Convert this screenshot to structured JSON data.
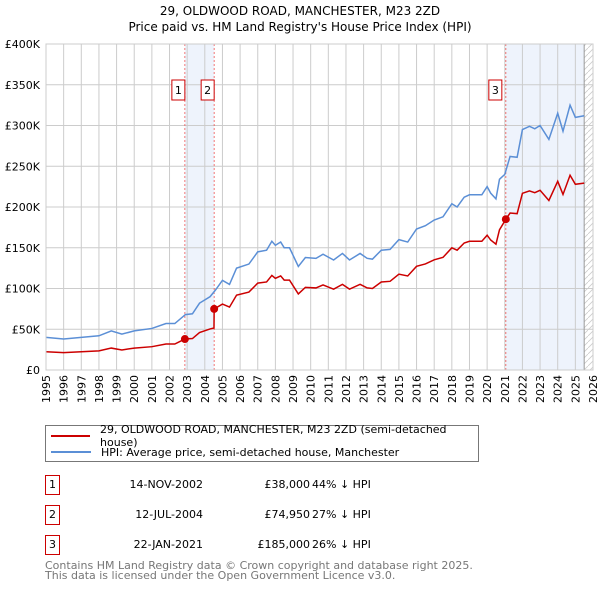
{
  "chart_data": {
    "type": "line",
    "title": "29, OLDWOOD ROAD, MANCHESTER, M23 2ZD",
    "subtitle": "Price paid vs. HM Land Registry's House Price Index (HPI)",
    "xlim": [
      1995,
      2026
    ],
    "ylim": [
      0,
      400000
    ],
    "x_ticks": [
      "1995",
      "1996",
      "1997",
      "1998",
      "1999",
      "2000",
      "2001",
      "2002",
      "2003",
      "2004",
      "2005",
      "2006",
      "2007",
      "2008",
      "2009",
      "2010",
      "2011",
      "2012",
      "2013",
      "2014",
      "2015",
      "2016",
      "2017",
      "2018",
      "2019",
      "2020",
      "2021",
      "2022",
      "2023",
      "2024",
      "2025",
      "2026"
    ],
    "y_ticks": [
      {
        "v": 0,
        "label": "£0"
      },
      {
        "v": 50000,
        "label": "£50K"
      },
      {
        "v": 100000,
        "label": "£100K"
      },
      {
        "v": 150000,
        "label": "£150K"
      },
      {
        "v": 200000,
        "label": "£200K"
      },
      {
        "v": 250000,
        "label": "£250K"
      },
      {
        "v": 300000,
        "label": "£300K"
      },
      {
        "v": 350000,
        "label": "£350K"
      },
      {
        "v": 400000,
        "label": "£400K"
      }
    ],
    "grid": true,
    "series": [
      {
        "name": "29, OLDWOOD ROAD, MANCHESTER, M23 2ZD (semi-detached house)",
        "color": "#cc0000",
        "x": [
          1995,
          1996,
          1997,
          1998,
          1998.7,
          1999.3,
          2000,
          2001,
          2001.8,
          2002.3,
          2002.87,
          2003.3,
          2003.7,
          2004.3,
          2004.52,
          2004.53,
          2005,
          2005.4,
          2005.8,
          2006.5,
          2007,
          2007.5,
          2007.8,
          2008,
          2008.3,
          2008.5,
          2008.8,
          2009.3,
          2009.7,
          2010.3,
          2010.7,
          2011.3,
          2011.8,
          2012.2,
          2012.8,
          2013.2,
          2013.5,
          2014,
          2014.5,
          2015,
          2015.5,
          2016,
          2016.5,
          2017,
          2017.5,
          2018,
          2018.3,
          2018.7,
          2019,
          2019.7,
          2020,
          2020.2,
          2020.5,
          2020.7,
          2021.06,
          2021.3,
          2021.7,
          2022,
          2022.4,
          2022.7,
          2023,
          2023.5,
          2024,
          2024.3,
          2024.7,
          2025,
          2025.5
        ],
        "values": [
          22400,
          21300,
          22400,
          23500,
          26900,
          24600,
          26900,
          28600,
          31900,
          31900,
          38000,
          38600,
          45900,
          50400,
          51500,
          74950,
          80900,
          77200,
          91900,
          95600,
          106600,
          108000,
          116100,
          112500,
          115400,
          110300,
          110300,
          93300,
          101400,
          100700,
          104400,
          99200,
          105100,
          99200,
          105100,
          100700,
          100000,
          108000,
          108800,
          117600,
          115400,
          127200,
          130100,
          135200,
          138200,
          149900,
          147000,
          155800,
          158000,
          158000,
          165400,
          159500,
          154400,
          172000,
          185000,
          192600,
          191800,
          216800,
          219800,
          217600,
          220500,
          208000,
          231500,
          215400,
          238900,
          227900,
          229300
        ]
      },
      {
        "name": "HPI: Average price, semi-detached house, Manchester",
        "color": "#5b8fd6",
        "x": [
          1995,
          1996,
          1997,
          1998,
          1998.7,
          1999.3,
          2000,
          2001,
          2001.8,
          2002.3,
          2002.9,
          2003.3,
          2003.7,
          2004.3,
          2004.6,
          2005,
          2005.4,
          2005.8,
          2006.5,
          2007,
          2007.5,
          2007.8,
          2008,
          2008.3,
          2008.5,
          2008.8,
          2009.3,
          2009.7,
          2010.3,
          2010.7,
          2011.3,
          2011.8,
          2012.2,
          2012.8,
          2013.2,
          2013.5,
          2014,
          2014.5,
          2015,
          2015.5,
          2016,
          2016.5,
          2017,
          2017.5,
          2018,
          2018.3,
          2018.7,
          2019,
          2019.7,
          2020,
          2020.2,
          2020.5,
          2020.7,
          2021,
          2021.3,
          2021.7,
          2022,
          2022.4,
          2022.7,
          2023,
          2023.5,
          2024,
          2024.3,
          2024.7,
          2025,
          2025.5
        ],
        "values": [
          40000,
          38000,
          40000,
          42000,
          48000,
          44000,
          48000,
          51000,
          57000,
          57000,
          68000,
          69000,
          82000,
          90000,
          98000,
          110000,
          105000,
          125000,
          130000,
          145000,
          147000,
          158000,
          153000,
          157000,
          150000,
          150000,
          127000,
          138000,
          137000,
          142000,
          135000,
          143000,
          135000,
          143000,
          137000,
          136000,
          147000,
          148000,
          160000,
          157000,
          173000,
          177000,
          184000,
          188000,
          204000,
          200000,
          212000,
          215000,
          215000,
          225000,
          217000,
          210000,
          234000,
          240000,
          262000,
          261000,
          295000,
          299000,
          296000,
          300000,
          283000,
          315000,
          293000,
          325000,
          310000,
          312000
        ]
      }
    ],
    "sales": [
      {
        "id": "1",
        "x": 2002.87,
        "value": 38000,
        "date": "14-NOV-2002",
        "price": "£38,000",
        "vs_hpi": "44% ↓ HPI"
      },
      {
        "id": "2",
        "x": 2004.53,
        "value": 74950,
        "date": "12-JUL-2004",
        "price": "£74,950",
        "vs_hpi": "27% ↓ HPI"
      },
      {
        "id": "3",
        "x": 2021.06,
        "value": 185000,
        "date": "22-JAN-2021",
        "price": "£185,000",
        "vs_hpi": "26% ↓ HPI"
      }
    ],
    "data_end": 2025.5,
    "legend_placement": "below"
  },
  "footer": {
    "line1": "Contains HM Land Registry data © Crown copyright and database right 2025.",
    "line2": "This data is licensed under the Open Government Licence v3.0."
  }
}
